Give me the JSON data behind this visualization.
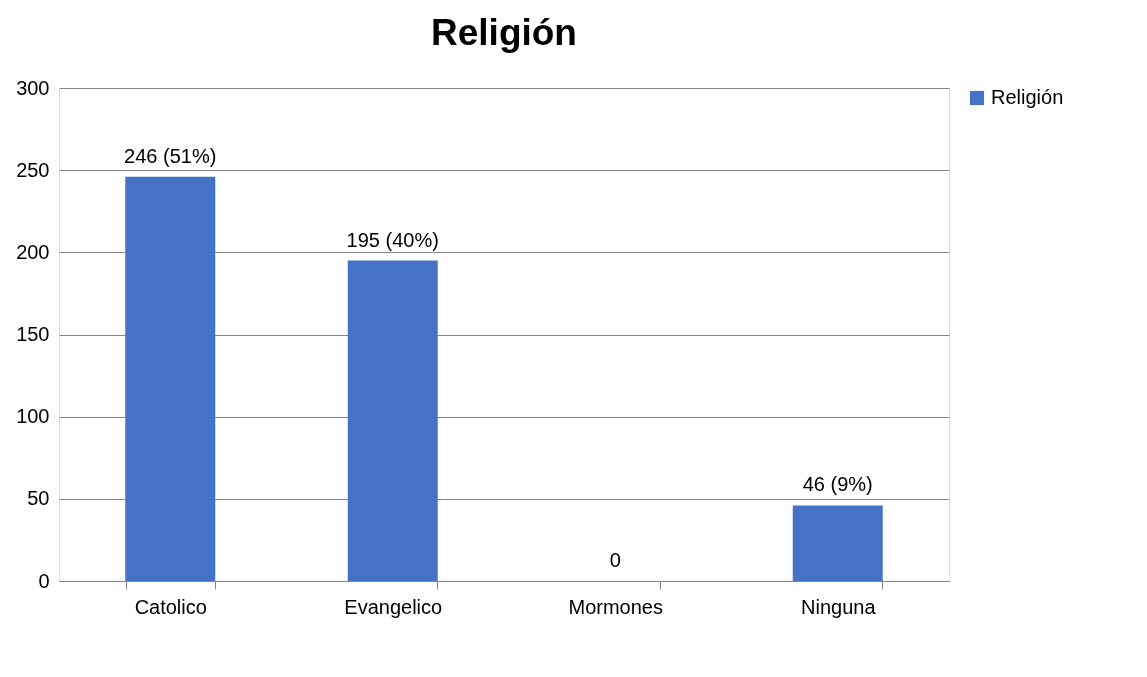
{
  "chart_data": {
    "type": "bar",
    "title": "Religión",
    "categories": [
      "Catolico",
      "Evangelico",
      "Mormones",
      "Ninguna"
    ],
    "series": [
      {
        "name": "Religión",
        "color": "#4472c4",
        "values": [
          246,
          195,
          0,
          46
        ]
      }
    ],
    "value_labels": [
      "246 (51%)",
      "195 (40%)",
      "0",
      "46 (9%)"
    ],
    "ylim": [
      0,
      300
    ],
    "yticks": [
      0,
      50,
      100,
      150,
      200,
      250,
      300
    ],
    "grid": "y",
    "legend": "right"
  }
}
